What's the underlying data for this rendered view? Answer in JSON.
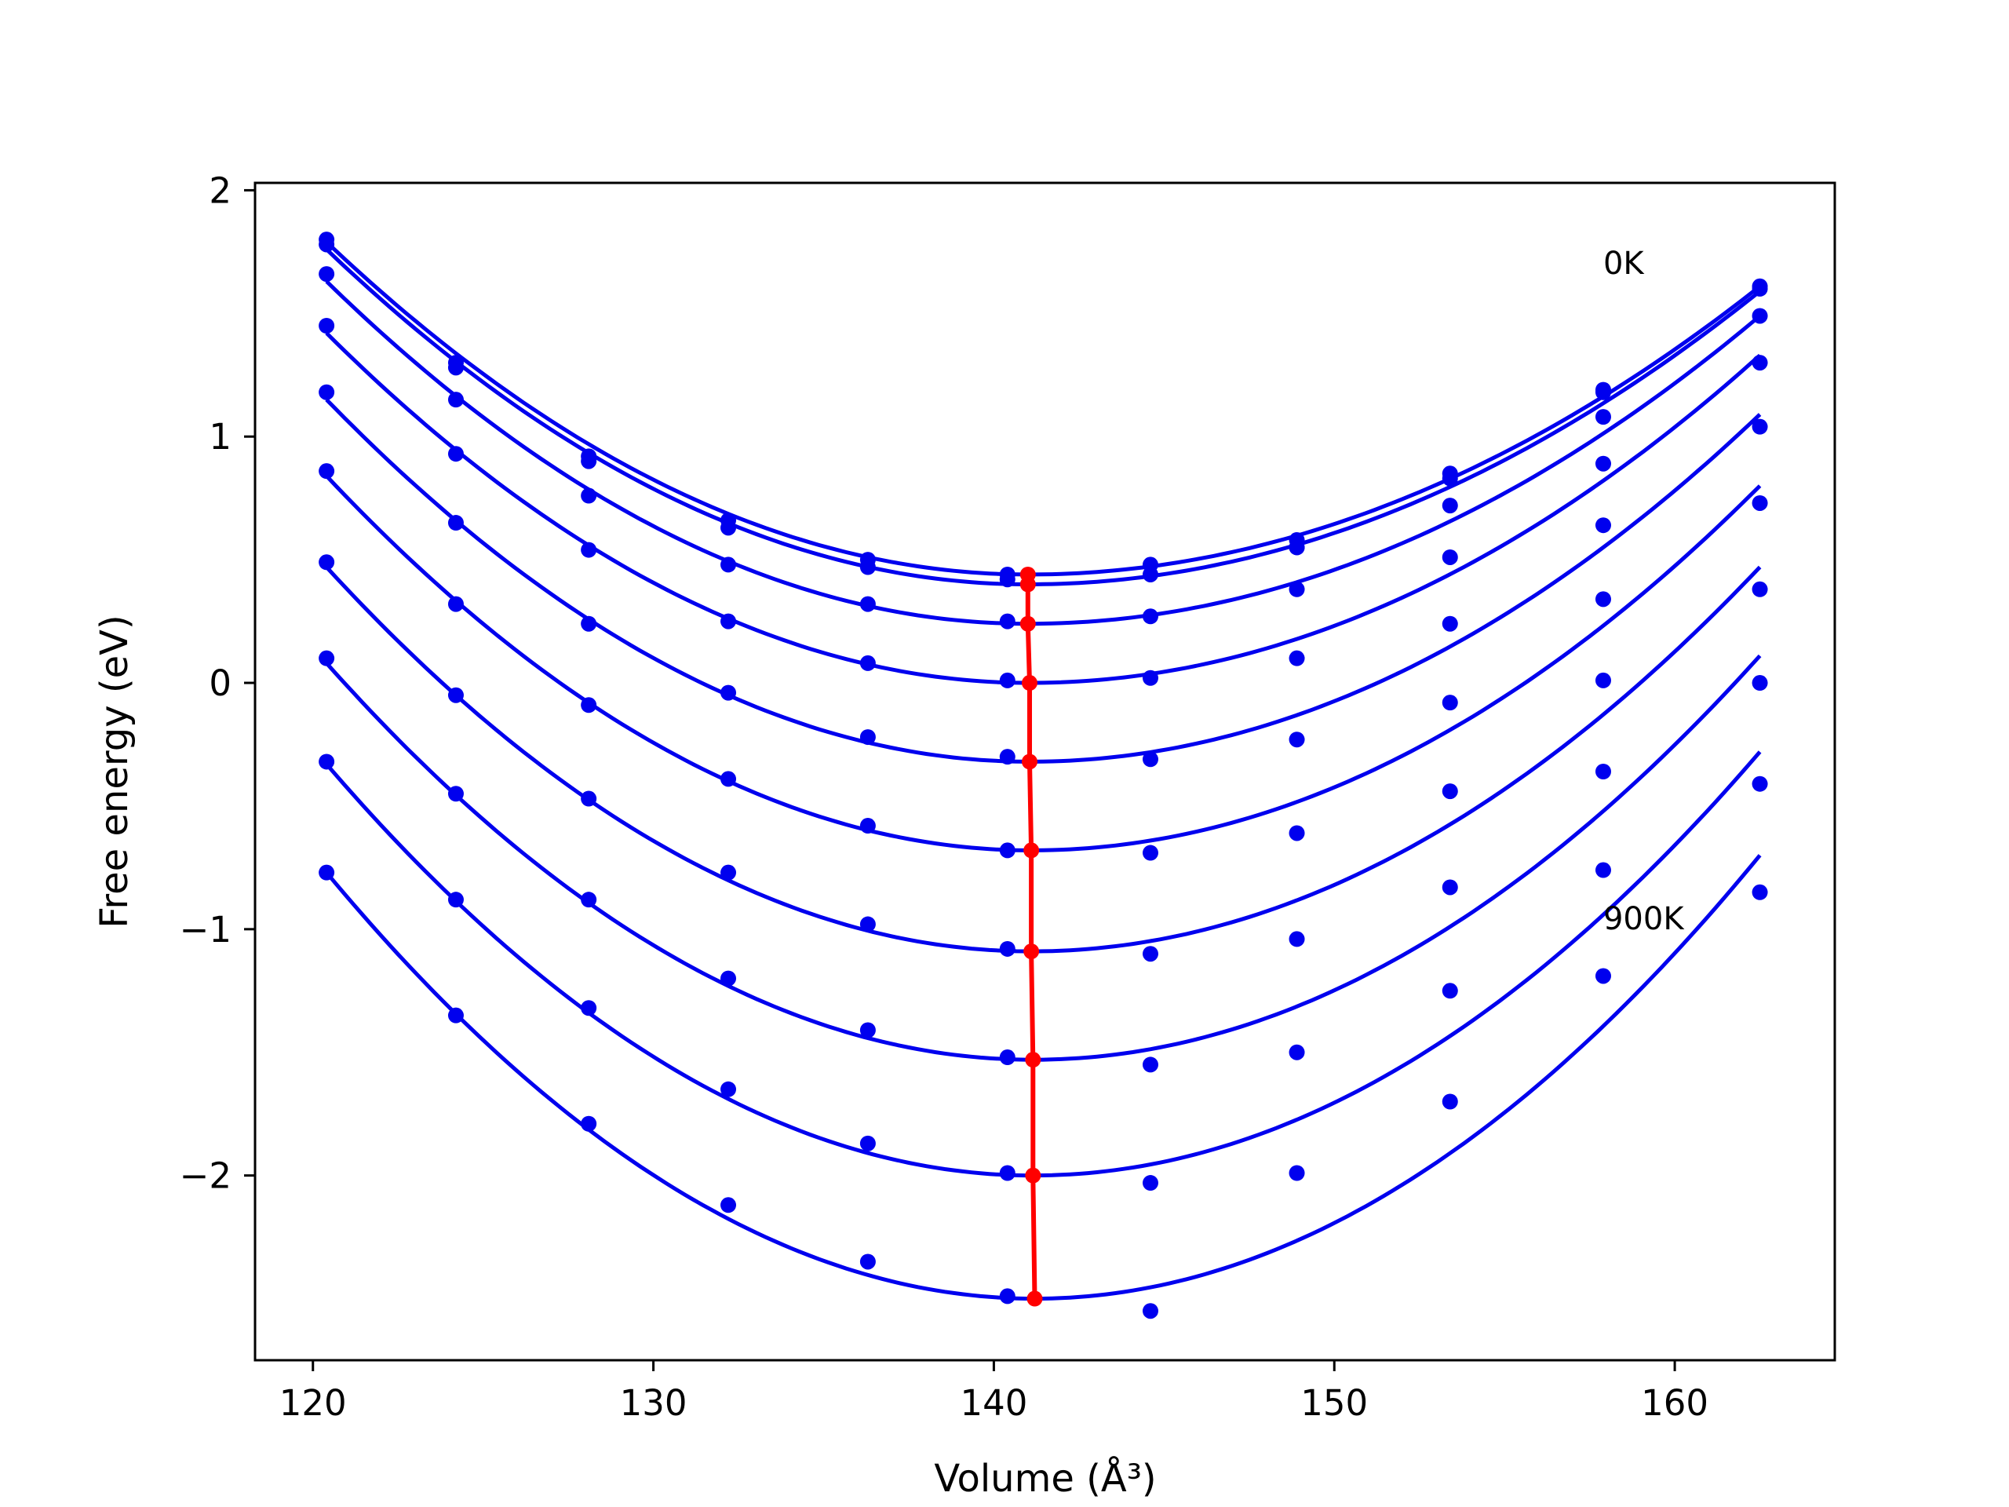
{
  "chart_data": {
    "type": "line",
    "xlabel": "Volume (Å³)",
    "ylabel": "Free energy (eV)",
    "xlim": [
      118.3,
      164.7
    ],
    "ylim": [
      -2.75,
      2.03
    ],
    "xticks": [
      120,
      130,
      140,
      150,
      160
    ],
    "yticks": [
      -2,
      -1,
      0,
      1,
      2
    ],
    "grid": false,
    "colors": {
      "curves": "#0000ee",
      "points": "#0000ee",
      "minimum_line": "#ff0000"
    },
    "annotations": [
      {
        "text": "0K",
        "x": 157.9,
        "y": 1.66
      },
      {
        "text": "900K",
        "x": 157.9,
        "y": -1.0
      }
    ],
    "volumes": [
      120.4,
      124.2,
      128.1,
      132.2,
      136.3,
      140.4,
      144.6,
      148.9,
      153.4,
      157.9,
      162.5
    ],
    "series": [
      {
        "points": [
          1.8,
          1.3,
          0.92,
          0.66,
          0.5,
          0.44,
          0.48,
          0.58,
          0.85,
          1.19,
          1.61
        ],
        "fit_min_x": 141.0,
        "fit_min_y": 0.44,
        "fit_start_y": 1.79,
        "fit_end_y": 1.61
      },
      {
        "points": [
          1.78,
          1.28,
          0.9,
          0.63,
          0.47,
          0.42,
          0.44,
          0.55,
          0.83,
          1.18,
          1.6
        ],
        "fit_min_x": 141.0,
        "fit_min_y": 0.4,
        "fit_start_y": 1.76,
        "fit_end_y": 1.59
      },
      {
        "points": [
          1.66,
          1.15,
          0.76,
          0.48,
          0.32,
          0.25,
          0.27,
          0.55,
          0.72,
          1.08,
          1.49
        ],
        "fit_min_x": 141.0,
        "fit_min_y": 0.24,
        "fit_start_y": 1.63,
        "fit_end_y": 1.49
      },
      {
        "points": [
          1.45,
          0.93,
          0.54,
          0.25,
          0.08,
          0.01,
          0.02,
          0.38,
          0.51,
          0.89,
          1.3
        ],
        "fit_min_x": 141.05,
        "fit_min_y": 0.0,
        "fit_start_y": 1.42,
        "fit_end_y": 1.33
      },
      {
        "points": [
          1.18,
          0.65,
          0.24,
          -0.04,
          -0.22,
          -0.3,
          -0.31,
          0.1,
          0.24,
          0.64,
          1.04
        ],
        "fit_min_x": 141.05,
        "fit_min_y": -0.32,
        "fit_start_y": 1.15,
        "fit_end_y": 1.09
      },
      {
        "points": [
          0.86,
          0.32,
          -0.09,
          -0.39,
          -0.58,
          -0.68,
          -0.69,
          -0.23,
          -0.08,
          0.34,
          0.73
        ],
        "fit_min_x": 141.1,
        "fit_min_y": -0.68,
        "fit_start_y": 0.84,
        "fit_end_y": 0.8
      },
      {
        "points": [
          0.49,
          -0.05,
          -0.47,
          -0.77,
          -0.98,
          -1.08,
          -1.1,
          -0.61,
          -0.44,
          0.01,
          0.38
        ],
        "fit_min_x": 141.1,
        "fit_min_y": -1.09,
        "fit_start_y": 0.47,
        "fit_end_y": 0.47
      },
      {
        "points": [
          0.1,
          -0.45,
          -0.88,
          -1.2,
          -1.41,
          -1.52,
          -1.55,
          -1.04,
          -0.83,
          -0.36,
          0.0
        ],
        "fit_min_x": 141.15,
        "fit_min_y": -1.53,
        "fit_start_y": 0.08,
        "fit_end_y": 0.11
      },
      {
        "points": [
          -0.32,
          -0.88,
          -1.32,
          -1.65,
          -1.87,
          -1.99,
          -2.03,
          -1.5,
          -1.25,
          -0.76,
          -0.41
        ],
        "fit_min_x": 141.15,
        "fit_min_y": -2.0,
        "fit_start_y": -0.33,
        "fit_end_y": -0.28
      },
      {
        "points": [
          -0.77,
          -1.35,
          -1.79,
          -2.12,
          -2.35,
          -2.49,
          -2.55,
          -1.99,
          -1.7,
          -1.19,
          -0.85
        ],
        "fit_min_x": 141.2,
        "fit_min_y": -2.5,
        "fit_start_y": -0.77,
        "fit_end_y": -0.7
      }
    ],
    "minimum_path": {
      "x": [
        141.0,
        141.0,
        141.0,
        141.05,
        141.05,
        141.1,
        141.1,
        141.15,
        141.15,
        141.2
      ],
      "y": [
        0.44,
        0.4,
        0.24,
        0.0,
        -0.32,
        -0.68,
        -1.09,
        -1.53,
        -2.0,
        -2.5
      ]
    }
  }
}
